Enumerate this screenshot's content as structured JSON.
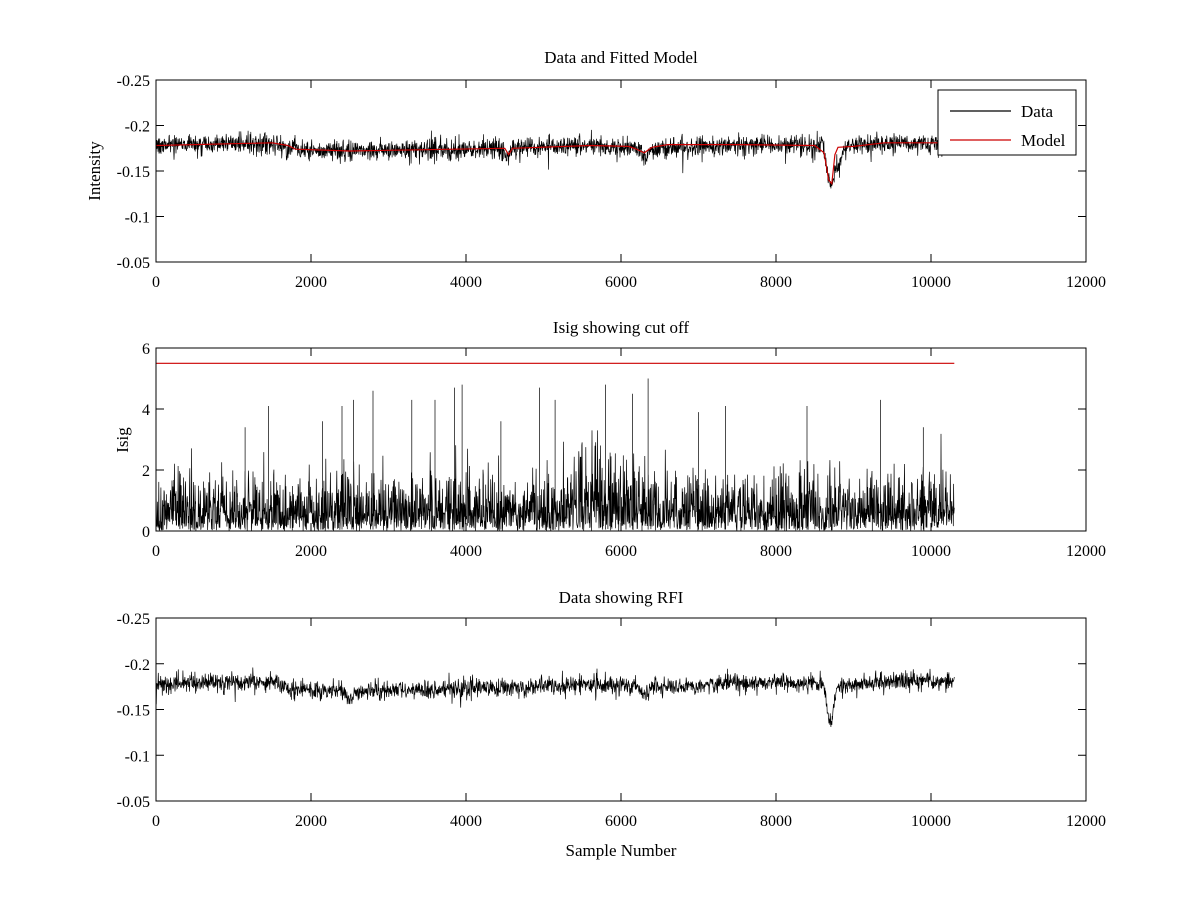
{
  "chart_data": [
    {
      "type": "line",
      "title": "Data and Fitted Model",
      "xlabel": "",
      "ylabel": "Intensity",
      "xlim": [
        0,
        12000
      ],
      "ylim": [
        -0.25,
        -0.05
      ],
      "y_reversed": true,
      "xticks": [
        "0",
        "2000",
        "4000",
        "6000",
        "8000",
        "10000",
        "12000"
      ],
      "yticks": [
        "-0.05",
        "-0.1",
        "-0.15",
        "-0.2",
        "-0.25"
      ],
      "legend": {
        "placement": "top-right",
        "entries": [
          "Data",
          "Model"
        ]
      },
      "series": [
        {
          "name": "Data",
          "color": "#000000",
          "style": "noisy",
          "x_range": [
            0,
            10300
          ],
          "baseline": [
            [
              0,
              -0.178
            ],
            [
              1500,
              -0.181
            ],
            [
              1750,
              -0.174
            ],
            [
              2500,
              -0.172
            ],
            [
              4500,
              -0.175
            ],
            [
              5600,
              -0.178
            ],
            [
              6200,
              -0.175
            ],
            [
              6400,
              -0.174
            ],
            [
              7500,
              -0.179
            ],
            [
              8600,
              -0.178
            ],
            [
              8800,
              -0.175
            ],
            [
              9400,
              -0.181
            ],
            [
              10300,
              -0.181
            ]
          ],
          "noise_amplitude": 0.012,
          "features": [
            {
              "x": 8700,
              "value": -0.133
            },
            {
              "x": 4550,
              "value": -0.168
            },
            {
              "x": 6300,
              "value": -0.163
            },
            {
              "x": 8800,
              "value": -0.155
            }
          ]
        },
        {
          "name": "Model",
          "color": "#cc0000",
          "points": [
            [
              0,
              -0.178
            ],
            [
              1500,
              -0.181
            ],
            [
              1700,
              -0.178
            ],
            [
              1800,
              -0.174
            ],
            [
              2500,
              -0.172
            ],
            [
              4500,
              -0.175
            ],
            [
              4550,
              -0.168
            ],
            [
              4600,
              -0.175
            ],
            [
              5600,
              -0.178
            ],
            [
              6100,
              -0.177
            ],
            [
              6200,
              -0.174
            ],
            [
              6300,
              -0.17
            ],
            [
              6400,
              -0.176
            ],
            [
              6600,
              -0.179
            ],
            [
              7500,
              -0.179
            ],
            [
              8500,
              -0.178
            ],
            [
              8620,
              -0.17
            ],
            [
              8680,
              -0.14
            ],
            [
              8720,
              -0.136
            ],
            [
              8760,
              -0.168
            ],
            [
              8800,
              -0.176
            ],
            [
              9000,
              -0.177
            ],
            [
              9400,
              -0.181
            ],
            [
              10300,
              -0.181
            ]
          ]
        }
      ]
    },
    {
      "type": "line",
      "title": "Isig showing cut off",
      "xlabel": "",
      "ylabel": "Isig",
      "xlim": [
        0,
        12000
      ],
      "ylim": [
        0,
        6
      ],
      "y_reversed": false,
      "xticks": [
        "0",
        "2000",
        "4000",
        "6000",
        "8000",
        "10000",
        "12000"
      ],
      "yticks": [
        "0",
        "2",
        "4",
        "6"
      ],
      "series": [
        {
          "name": "",
          "color": "#000000",
          "style": "noisy",
          "x_range": [
            0,
            10300
          ],
          "peaks": [
            [
              1150,
              3.4
            ],
            [
              1450,
              4.1
            ],
            [
              2150,
              3.6
            ],
            [
              2400,
              4.1
            ],
            [
              2550,
              4.3
            ],
            [
              2800,
              4.6
            ],
            [
              3300,
              4.3
            ],
            [
              3600,
              4.3
            ],
            [
              3850,
              4.7
            ],
            [
              3950,
              4.8
            ],
            [
              4450,
              3.6
            ],
            [
              4950,
              4.7
            ],
            [
              5150,
              4.3
            ],
            [
              5800,
              4.8
            ],
            [
              6150,
              4.5
            ],
            [
              6350,
              5.0
            ],
            [
              7000,
              3.9
            ],
            [
              7350,
              4.1
            ],
            [
              8400,
              4.1
            ],
            [
              9350,
              4.3
            ],
            [
              9900,
              3.4
            ]
          ]
        },
        {
          "name": "",
          "color": "#cc0000",
          "points": [
            [
              0,
              5.5
            ],
            [
              10300,
              5.5
            ]
          ]
        }
      ]
    },
    {
      "type": "line",
      "title": "Data showing RFI",
      "xlabel": "Sample Number",
      "ylabel": "",
      "xlim": [
        0,
        12000
      ],
      "ylim": [
        -0.25,
        -0.05
      ],
      "y_reversed": true,
      "xticks": [
        "0",
        "2000",
        "4000",
        "6000",
        "8000",
        "10000",
        "12000"
      ],
      "yticks": [
        "-0.05",
        "-0.1",
        "-0.15",
        "-0.2",
        "-0.25"
      ],
      "series": [
        {
          "name": "",
          "color": "#000000",
          "style": "noisy",
          "x_range": [
            0,
            10300
          ],
          "baseline": [
            [
              0,
              -0.178
            ],
            [
              1500,
              -0.181
            ],
            [
              1750,
              -0.172
            ],
            [
              2500,
              -0.17
            ],
            [
              4500,
              -0.174
            ],
            [
              5600,
              -0.178
            ],
            [
              6200,
              -0.176
            ],
            [
              6400,
              -0.174
            ],
            [
              7500,
              -0.179
            ],
            [
              8600,
              -0.178
            ],
            [
              8800,
              -0.175
            ],
            [
              9400,
              -0.181
            ],
            [
              10300,
              -0.181
            ]
          ],
          "noise_amplitude": 0.011,
          "features": [
            {
              "x": 8700,
              "value": -0.133
            },
            {
              "x": 6300,
              "value": -0.163
            },
            {
              "x": 2500,
              "value": -0.16
            }
          ]
        }
      ]
    }
  ]
}
